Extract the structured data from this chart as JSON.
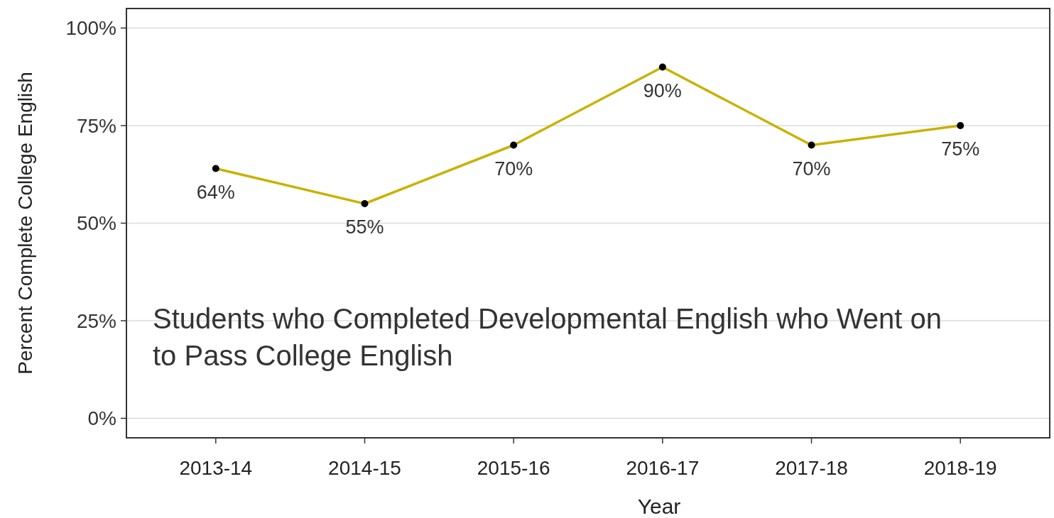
{
  "chart_data": {
    "type": "line",
    "xlabel": "Year",
    "ylabel": "Percent Complete College English",
    "categories": [
      "2013-14",
      "2014-15",
      "2015-16",
      "2016-17",
      "2017-18",
      "2018-19"
    ],
    "series": [
      {
        "color": "#c9b200",
        "values": [
          64,
          55,
          70,
          90,
          70,
          75
        ],
        "value_labels": [
          "64%",
          "55%",
          "70%",
          "90%",
          "70%",
          "75%"
        ]
      }
    ],
    "ylim": [
      -5,
      105
    ],
    "yticks": [
      {
        "value": 0,
        "label": "0%"
      },
      {
        "value": 25,
        "label": "25%"
      },
      {
        "value": 50,
        "label": "50%"
      },
      {
        "value": 75,
        "label": "75%"
      },
      {
        "value": 100,
        "label": "100%"
      }
    ],
    "grid": "y",
    "marker": "circle",
    "line_style": "solid",
    "annotations": [
      "Students who Completed Developmental English who Went on to Pass College English"
    ]
  }
}
